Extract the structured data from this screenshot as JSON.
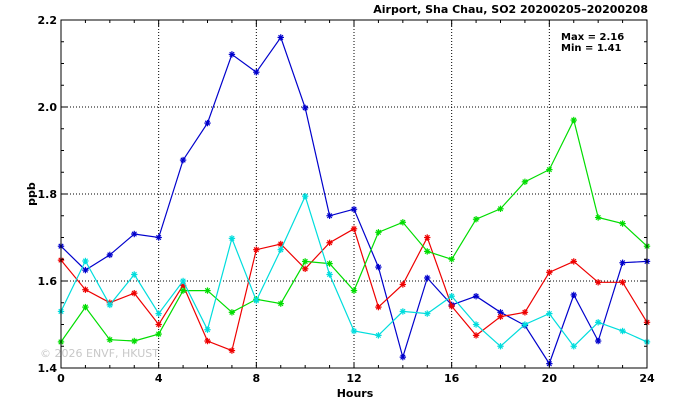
{
  "chart_data": {
    "type": "line",
    "title": "Airport, Sha Chau, SO2 20200205–20200208",
    "xlabel": "Hours",
    "ylabel": "ppb",
    "xlim": [
      0,
      24
    ],
    "ylim": [
      1.4,
      2.2
    ],
    "x_ticks": [
      "0",
      "4",
      "8",
      "12",
      "16",
      "20",
      "24"
    ],
    "y_ticks": [
      "1.4",
      "1.6",
      "1.8",
      "2.0",
      "2.2"
    ],
    "grid": "dotted vertical and horizontal at major ticks",
    "legend": "none",
    "annotations": {
      "max_label": "Max = 2.16",
      "min_label": "Min = 1.41"
    },
    "watermark": "© 2026 ENVF, HKUST",
    "x": [
      0,
      1,
      2,
      3,
      4,
      5,
      6,
      7,
      8,
      9,
      10,
      11,
      12,
      13,
      14,
      15,
      16,
      17,
      18,
      19,
      20,
      21,
      22,
      23,
      24
    ],
    "series": [
      {
        "color": "#0000cc",
        "values": [
          1.68,
          1.625,
          1.66,
          1.708,
          1.7,
          1.878,
          1.963,
          2.121,
          2.08,
          2.16,
          1.998,
          1.75,
          1.765,
          1.632,
          1.425,
          1.607,
          1.545,
          1.565,
          1.528,
          1.498,
          1.41,
          1.568,
          1.462,
          1.642,
          1.645
        ]
      },
      {
        "color": "#ee0000",
        "values": [
          1.648,
          1.58,
          1.55,
          1.572,
          1.5,
          1.59,
          1.462,
          1.44,
          1.672,
          1.685,
          1.628,
          1.688,
          1.72,
          1.54,
          1.592,
          1.7,
          1.542,
          1.475,
          1.518,
          1.528,
          1.62,
          1.645,
          1.597,
          1.597,
          1.505
        ]
      },
      {
        "color": "#00dd00",
        "values": [
          1.46,
          1.54,
          1.465,
          1.462,
          1.478,
          1.578,
          1.578,
          1.528,
          1.558,
          1.548,
          1.645,
          1.64,
          1.578,
          1.712,
          1.735,
          1.668,
          1.65,
          1.742,
          1.766,
          1.828,
          1.856,
          1.97,
          1.746,
          1.732,
          1.68
        ]
      },
      {
        "color": "#00dddd",
        "values": [
          1.53,
          1.646,
          1.545,
          1.615,
          1.525,
          1.6,
          1.488,
          1.698,
          1.555,
          1.672,
          1.795,
          1.615,
          1.485,
          1.475,
          1.53,
          1.525,
          1.565,
          1.5,
          1.45,
          1.5,
          1.525,
          1.45,
          1.505,
          1.485,
          1.46
        ]
      }
    ]
  }
}
